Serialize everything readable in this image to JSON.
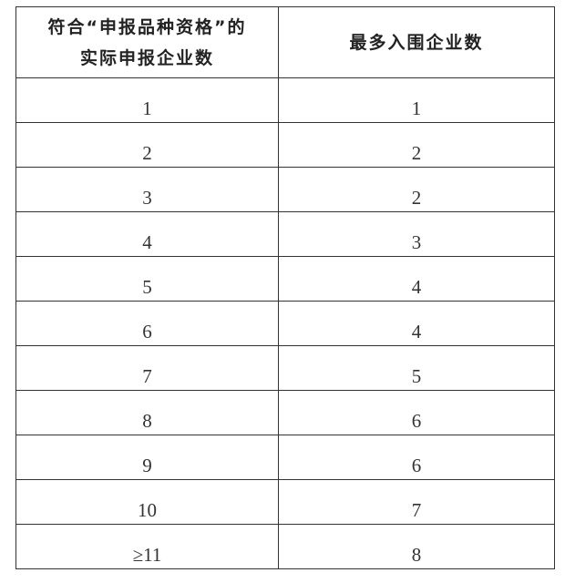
{
  "table": {
    "headers": [
      "符合“申报品种资格”的\n实际申报企业数",
      "最多入围企业数"
    ],
    "header_line1": "符合“申报品种资格”的",
    "header_line2": "实际申报企业数",
    "header_col2": "最多入围企业数",
    "rows": [
      [
        "1",
        "1"
      ],
      [
        "2",
        "2"
      ],
      [
        "3",
        "2"
      ],
      [
        "4",
        "3"
      ],
      [
        "5",
        "4"
      ],
      [
        "6",
        "4"
      ],
      [
        "7",
        "5"
      ],
      [
        "8",
        "6"
      ],
      [
        "9",
        "6"
      ],
      [
        "10",
        "7"
      ],
      [
        "≥11",
        "8"
      ]
    ]
  }
}
